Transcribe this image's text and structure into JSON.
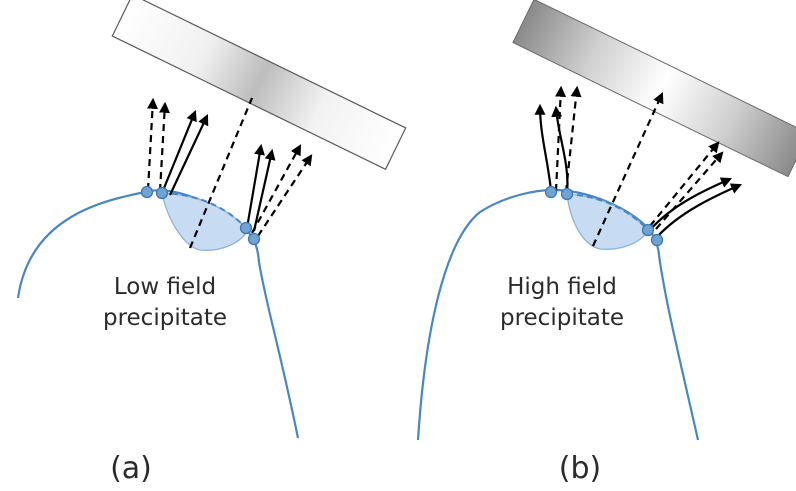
{
  "panels": [
    {
      "panel_label": "(a)",
      "precipitate_label_line1": "Low field",
      "precipitate_label_line2": "precipitate"
    },
    {
      "panel_label": "(b)",
      "precipitate_label_line1": "High field",
      "precipitate_label_line2": "precipitate"
    }
  ]
}
